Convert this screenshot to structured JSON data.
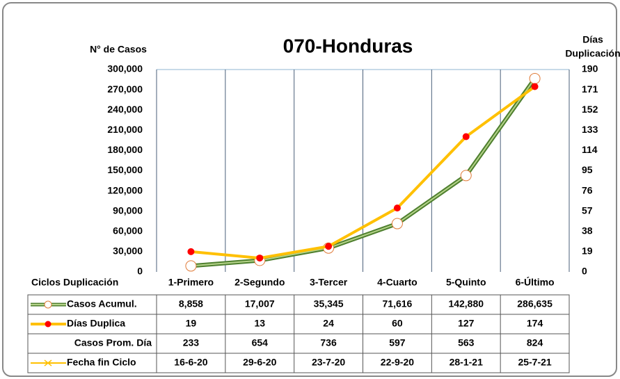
{
  "chart_data": {
    "type": "line",
    "title": "070-Honduras",
    "y_label": "N° de Casos",
    "y2_label": [
      "Días",
      "Duplicación"
    ],
    "table_header": "Ciclos Duplicación",
    "categories": [
      "1-Primero",
      "2-Segundo",
      "3-Tercer",
      "4-Cuarto",
      "5-Quinto",
      "6-Último"
    ],
    "series": [
      {
        "name": "Casos Acumul.",
        "color": "#4e7f2e",
        "marker_fill": "#ffffff",
        "marker_edge": "#e07b39",
        "axis": "y",
        "values": [
          8858,
          17007,
          35345,
          71616,
          142880,
          286635
        ],
        "value_labels": [
          "8,858",
          "17,007",
          "35,345",
          "71,616",
          "142,880",
          "286,635"
        ]
      },
      {
        "name": "Días Duplica",
        "color": "#ffc000",
        "marker_fill": "#ff0000",
        "marker_edge": "#ff0000",
        "axis": "y2",
        "values": [
          19,
          13,
          24,
          60,
          127,
          174
        ]
      }
    ],
    "table_rows": [
      {
        "name": "Casos Prom. Día",
        "values": [
          233,
          654,
          736,
          597,
          563,
          824
        ]
      },
      {
        "name": "Fecha fin Ciclo",
        "color": "#ffc000",
        "values": [
          "16-6-20",
          "29-6-20",
          "23-7-20",
          "22-9-20",
          "28-1-21",
          "25-7-21"
        ]
      }
    ],
    "ylim": [
      0,
      300000
    ],
    "yticks": [
      0,
      {
        "value": 30000,
        "label": "30,000"
      },
      {
        "value": 60000,
        "label": "60,000"
      },
      {
        "value": 90000,
        "label": "90,000"
      },
      {
        "value": 120000,
        "label": "120,000"
      },
      {
        "value": 150000,
        "label": "150,000"
      },
      {
        "value": 180000,
        "label": "180,000"
      },
      {
        "value": 210000,
        "label": "210,000"
      },
      {
        "value": 240000,
        "label": "240,000"
      },
      {
        "value": 270000,
        "label": "270,000"
      },
      {
        "value": 300000,
        "label": "300,000"
      }
    ],
    "y2lim": [
      0,
      190
    ],
    "y2ticks": [
      0,
      19,
      38,
      57,
      76,
      95,
      114,
      133,
      152,
      171,
      190
    ]
  }
}
